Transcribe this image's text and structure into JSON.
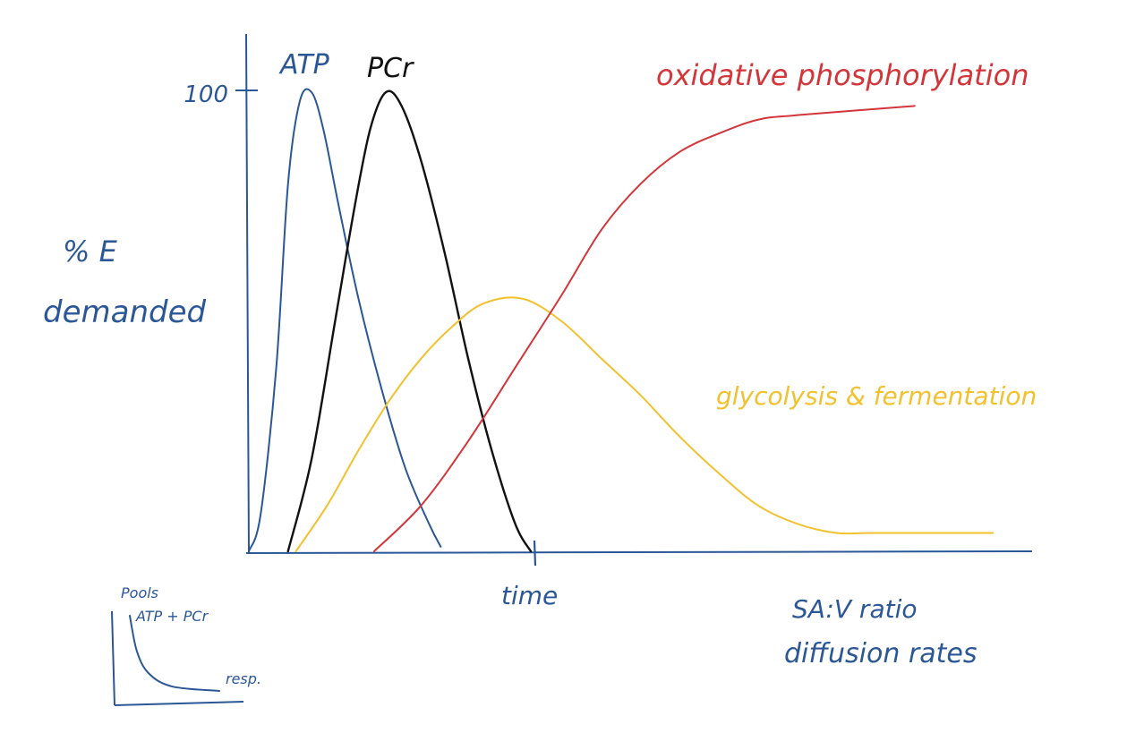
{
  "chart_data": [
    {
      "type": "line",
      "title": "",
      "xlabel": "time",
      "ylabel_line1": "% E",
      "ylabel_line2": "demanded",
      "y_tick_label": "100",
      "y_tick_value": 100,
      "ylim": [
        0,
        100
      ],
      "xlim": [
        0,
        10
      ],
      "x_marker": 3.6,
      "grid": false,
      "legend": "none",
      "series": [
        {
          "name": "ATP",
          "color": "#2b5797",
          "points": [
            [
              0,
              0
            ],
            [
              0.15,
              8
            ],
            [
              0.35,
              40
            ],
            [
              0.5,
              80
            ],
            [
              0.65,
              98
            ],
            [
              0.8,
              100
            ],
            [
              0.95,
              92
            ],
            [
              1.15,
              75
            ],
            [
              1.4,
              55
            ],
            [
              1.7,
              35
            ],
            [
              2.0,
              18
            ],
            [
              2.3,
              6
            ],
            [
              2.45,
              1
            ]
          ]
        },
        {
          "name": "PCr",
          "color": "#111111",
          "points": [
            [
              0.5,
              0
            ],
            [
              0.8,
              20
            ],
            [
              1.1,
              50
            ],
            [
              1.35,
              75
            ],
            [
              1.55,
              92
            ],
            [
              1.75,
              100
            ],
            [
              1.95,
              97
            ],
            [
              2.2,
              85
            ],
            [
              2.5,
              65
            ],
            [
              2.8,
              42
            ],
            [
              3.1,
              22
            ],
            [
              3.4,
              6
            ],
            [
              3.6,
              0
            ]
          ]
        },
        {
          "name": "glycolysis & fermentation",
          "color": "#f2c12e",
          "points": [
            [
              0.6,
              0
            ],
            [
              1.0,
              10
            ],
            [
              1.4,
              22
            ],
            [
              1.8,
              33
            ],
            [
              2.2,
              42
            ],
            [
              2.6,
              49
            ],
            [
              3.0,
              54
            ],
            [
              3.5,
              55
            ],
            [
              4.0,
              50
            ],
            [
              4.5,
              42
            ],
            [
              5.0,
              34
            ],
            [
              5.5,
              25
            ],
            [
              6.0,
              17
            ],
            [
              6.5,
              10
            ],
            [
              7.0,
              6
            ],
            [
              7.5,
              4
            ],
            [
              8.0,
              4
            ],
            [
              9.5,
              4
            ]
          ]
        },
        {
          "name": "oxidative phosphorylation",
          "color": "#d2363a",
          "points": [
            [
              1.6,
              0
            ],
            [
              2.2,
              10
            ],
            [
              2.8,
              24
            ],
            [
              3.4,
              40
            ],
            [
              4.0,
              56
            ],
            [
              4.5,
              70
            ],
            [
              5.0,
              80
            ],
            [
              5.5,
              87
            ],
            [
              6.0,
              91
            ],
            [
              6.5,
              94
            ],
            [
              7.0,
              95
            ],
            [
              8.5,
              97
            ]
          ]
        }
      ],
      "annotations": [
        "SA:V ratio",
        "diffusion rates"
      ]
    },
    {
      "type": "line",
      "title": "",
      "xlabel": "",
      "ylabel": "",
      "series": [
        {
          "name": "",
          "color": "#2b5797",
          "points": [
            [
              0.2,
              10
            ],
            [
              0.5,
              6
            ],
            [
              1,
              3.5
            ],
            [
              2,
              2
            ],
            [
              4,
              1.5
            ]
          ]
        }
      ],
      "labels": {
        "top": "Pools",
        "curve_start": "ATP + PCr",
        "curve_end": "resp."
      }
    }
  ],
  "colors": {
    "axis": "#2b5797",
    "ink_blue": "#2b5797"
  }
}
